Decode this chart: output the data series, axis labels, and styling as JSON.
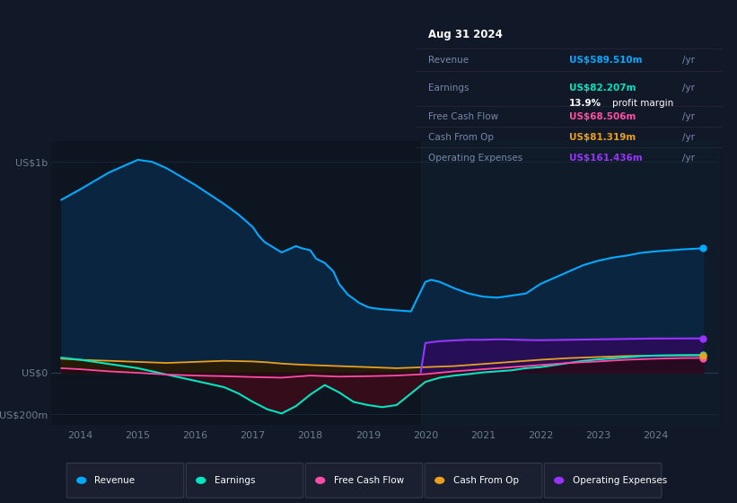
{
  "bg_color": "#111827",
  "plot_bg_color": "#0d1520",
  "grid_color": "#1e2d3d",
  "xlim": [
    2013.5,
    2025.1
  ],
  "ylim": [
    -250000000,
    1100000000
  ],
  "yticks": [
    -200000000,
    0,
    1000000000
  ],
  "ytick_labels": [
    "-US$200m",
    "US$0",
    "US$1b"
  ],
  "xticks": [
    2014,
    2015,
    2016,
    2017,
    2018,
    2019,
    2020,
    2021,
    2022,
    2023,
    2024
  ],
  "colors": {
    "revenue": "#00aaff",
    "earnings": "#00e5c0",
    "fcf": "#ff4da6",
    "cashfromop": "#e8a020",
    "opex": "#9933ff"
  },
  "info_box": {
    "date": "Aug 31 2024",
    "revenue_label": "Revenue",
    "revenue_val": "US$589.510m",
    "revenue_color": "#00aaff",
    "earnings_label": "Earnings",
    "earnings_val": "US$82.207m",
    "earnings_color": "#00e5c0",
    "profit_pct": "13.9%",
    "profit_text": " profit margin",
    "fcf_label": "Free Cash Flow",
    "fcf_val": "US$68.506m",
    "fcf_color": "#ff4da6",
    "cashfromop_label": "Cash From Op",
    "cashfromop_val": "US$81.319m",
    "cashfromop_color": "#e8a020",
    "opex_label": "Operating Expenses",
    "opex_val": "US$161.436m",
    "opex_color": "#9933ff"
  },
  "legend": [
    {
      "label": "Revenue",
      "color": "#00aaff"
    },
    {
      "label": "Earnings",
      "color": "#00e5c0"
    },
    {
      "label": "Free Cash Flow",
      "color": "#ff4da6"
    },
    {
      "label": "Cash From Op",
      "color": "#e8a020"
    },
    {
      "label": "Operating Expenses",
      "color": "#9933ff"
    }
  ],
  "revenue_x": [
    2013.67,
    2014.0,
    2014.5,
    2015.0,
    2015.25,
    2015.5,
    2016.0,
    2016.5,
    2016.75,
    2017.0,
    2017.1,
    2017.2,
    2017.5,
    2017.75,
    2017.85,
    2018.0,
    2018.1,
    2018.25,
    2018.4,
    2018.5,
    2018.65,
    2018.75,
    2018.85,
    2019.0,
    2019.1,
    2019.25,
    2019.5,
    2019.75,
    2020.0,
    2020.1,
    2020.25,
    2020.5,
    2020.75,
    2021.0,
    2021.25,
    2021.5,
    2021.75,
    2022.0,
    2022.25,
    2022.5,
    2022.75,
    2023.0,
    2023.25,
    2023.5,
    2023.75,
    2024.0,
    2024.5,
    2024.83
  ],
  "revenue_y": [
    820000000,
    870000000,
    950000000,
    1010000000,
    1000000000,
    970000000,
    890000000,
    800000000,
    750000000,
    690000000,
    650000000,
    620000000,
    570000000,
    600000000,
    590000000,
    580000000,
    540000000,
    520000000,
    480000000,
    420000000,
    370000000,
    350000000,
    330000000,
    310000000,
    305000000,
    300000000,
    295000000,
    290000000,
    430000000,
    440000000,
    430000000,
    400000000,
    375000000,
    360000000,
    355000000,
    365000000,
    375000000,
    420000000,
    450000000,
    480000000,
    510000000,
    530000000,
    545000000,
    555000000,
    568000000,
    575000000,
    585000000,
    589510000
  ],
  "earnings_x": [
    2013.67,
    2014.0,
    2014.5,
    2015.0,
    2015.5,
    2016.0,
    2016.5,
    2016.75,
    2017.0,
    2017.25,
    2017.5,
    2017.75,
    2018.0,
    2018.25,
    2018.5,
    2018.75,
    2019.0,
    2019.25,
    2019.5,
    2019.75,
    2020.0,
    2020.25,
    2020.5,
    2020.75,
    2021.0,
    2021.25,
    2021.5,
    2021.75,
    2022.0,
    2022.25,
    2022.5,
    2022.75,
    2023.0,
    2023.25,
    2023.5,
    2023.75,
    2024.0,
    2024.5,
    2024.83
  ],
  "earnings_y": [
    70000000,
    60000000,
    40000000,
    20000000,
    -10000000,
    -40000000,
    -70000000,
    -100000000,
    -140000000,
    -175000000,
    -195000000,
    -160000000,
    -105000000,
    -60000000,
    -95000000,
    -140000000,
    -155000000,
    -165000000,
    -155000000,
    -100000000,
    -45000000,
    -25000000,
    -15000000,
    -8000000,
    0,
    5000000,
    10000000,
    20000000,
    25000000,
    35000000,
    45000000,
    55000000,
    62000000,
    67000000,
    72000000,
    77000000,
    80000000,
    82000000,
    82207000
  ],
  "fcf_x": [
    2013.67,
    2014.0,
    2014.5,
    2015.0,
    2015.5,
    2016.0,
    2016.5,
    2017.0,
    2017.5,
    2018.0,
    2018.5,
    2019.0,
    2019.5,
    2020.0,
    2020.5,
    2021.0,
    2021.5,
    2022.0,
    2022.5,
    2023.0,
    2023.5,
    2024.0,
    2024.5,
    2024.83
  ],
  "fcf_y": [
    20000000,
    15000000,
    5000000,
    -2000000,
    -10000000,
    -15000000,
    -18000000,
    -22000000,
    -25000000,
    -15000000,
    -20000000,
    -18000000,
    -15000000,
    -8000000,
    5000000,
    15000000,
    25000000,
    35000000,
    45000000,
    52000000,
    60000000,
    65000000,
    68000000,
    68506000
  ],
  "cashfromop_x": [
    2013.67,
    2014.0,
    2014.5,
    2015.0,
    2015.5,
    2016.0,
    2016.5,
    2017.0,
    2017.25,
    2017.5,
    2017.75,
    2018.0,
    2018.5,
    2019.0,
    2019.5,
    2020.0,
    2020.5,
    2021.0,
    2021.5,
    2022.0,
    2022.5,
    2023.0,
    2023.5,
    2024.0,
    2024.5,
    2024.83
  ],
  "cashfromop_y": [
    65000000,
    60000000,
    55000000,
    50000000,
    45000000,
    50000000,
    55000000,
    52000000,
    48000000,
    42000000,
    38000000,
    35000000,
    30000000,
    25000000,
    20000000,
    25000000,
    30000000,
    40000000,
    50000000,
    60000000,
    68000000,
    73000000,
    78000000,
    80000000,
    81000000,
    81319000
  ],
  "opex_x": [
    2019.92,
    2020.0,
    2020.25,
    2020.5,
    2020.75,
    2021.0,
    2021.25,
    2021.5,
    2021.75,
    2022.0,
    2022.25,
    2022.5,
    2022.75,
    2023.0,
    2023.25,
    2023.5,
    2023.75,
    2024.0,
    2024.5,
    2024.83
  ],
  "opex_y": [
    0,
    140000000,
    148000000,
    152000000,
    155000000,
    155000000,
    157000000,
    156000000,
    154000000,
    153000000,
    154000000,
    155000000,
    156000000,
    157000000,
    158000000,
    159000000,
    160000000,
    161000000,
    161300000,
    161436000
  ],
  "shade_start_x": 2019.92,
  "shade_end_x": 2025.1
}
